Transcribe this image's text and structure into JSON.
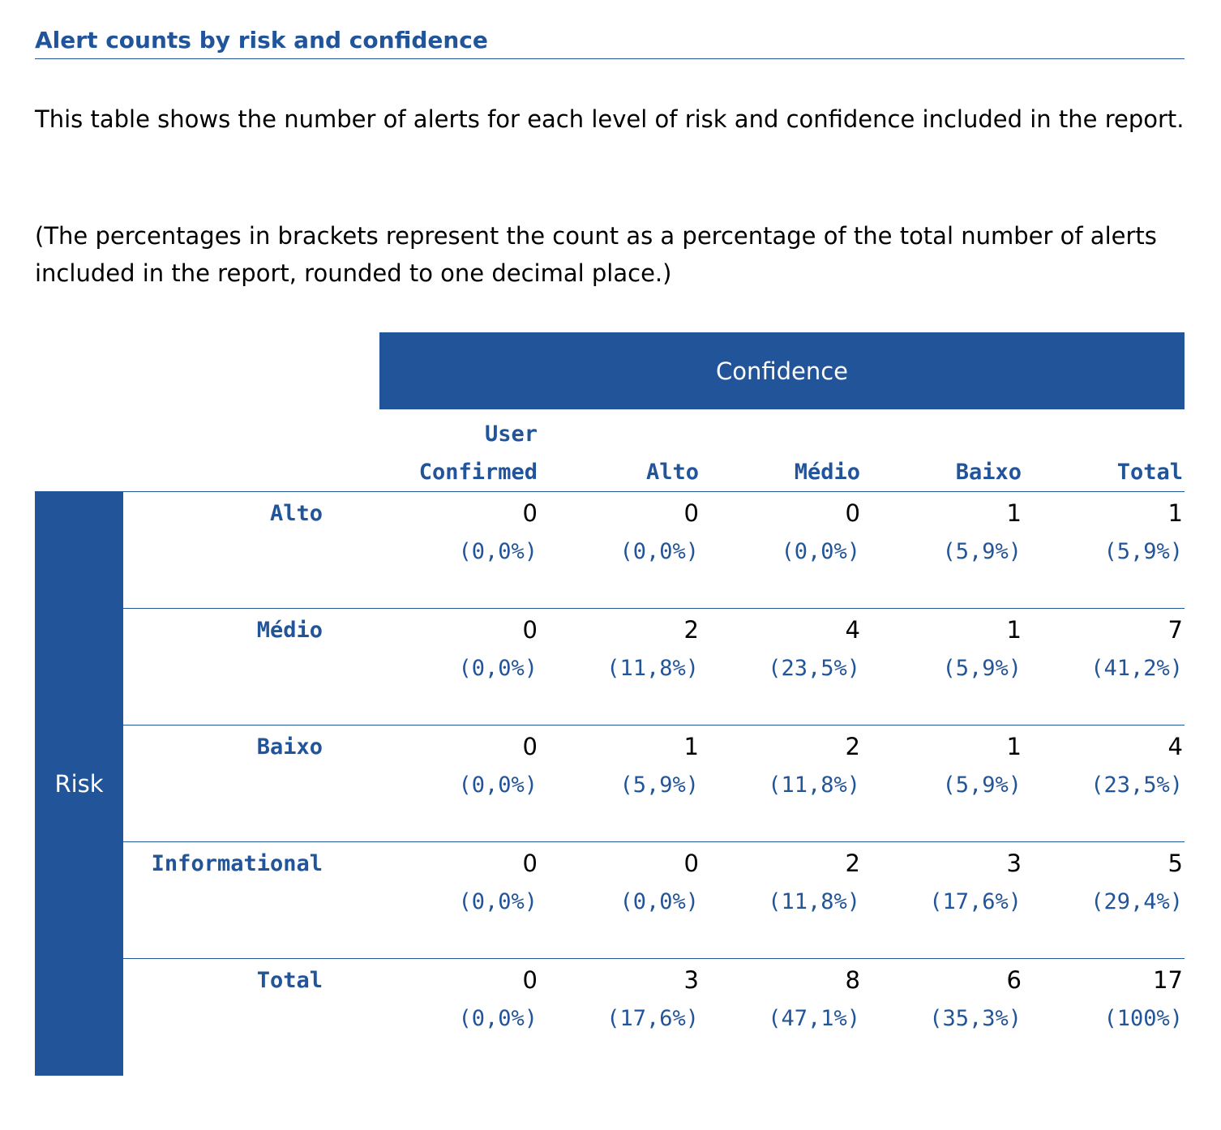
{
  "title": "Alert counts by risk and confidence",
  "paragraphs": [
    "This table shows the number of alerts for each level of risk and confidence included in the report.",
    "(The percentages in brackets represent the count as a percentage of the total number of alerts included in the report, rounded to one decimal place.)"
  ],
  "table": {
    "confidence_label": "Confidence",
    "risk_label": "Risk",
    "columns": [
      {
        "lines": [
          "User",
          "Confirmed"
        ]
      },
      {
        "lines": [
          "Alto"
        ]
      },
      {
        "lines": [
          "Médio"
        ]
      },
      {
        "lines": [
          "Baixo"
        ]
      },
      {
        "lines": [
          "Total"
        ]
      }
    ],
    "rows": [
      {
        "label": "Alto",
        "cells": [
          {
            "count": "0",
            "pct": "(0,0%)"
          },
          {
            "count": "0",
            "pct": "(0,0%)"
          },
          {
            "count": "0",
            "pct": "(0,0%)"
          },
          {
            "count": "1",
            "pct": "(5,9%)"
          },
          {
            "count": "1",
            "pct": "(5,9%)"
          }
        ]
      },
      {
        "label": "Médio",
        "cells": [
          {
            "count": "0",
            "pct": "(0,0%)"
          },
          {
            "count": "2",
            "pct": "(11,8%)"
          },
          {
            "count": "4",
            "pct": "(23,5%)"
          },
          {
            "count": "1",
            "pct": "(5,9%)"
          },
          {
            "count": "7",
            "pct": "(41,2%)"
          }
        ]
      },
      {
        "label": "Baixo",
        "cells": [
          {
            "count": "0",
            "pct": "(0,0%)"
          },
          {
            "count": "1",
            "pct": "(5,9%)"
          },
          {
            "count": "2",
            "pct": "(11,8%)"
          },
          {
            "count": "1",
            "pct": "(5,9%)"
          },
          {
            "count": "4",
            "pct": "(23,5%)"
          }
        ]
      },
      {
        "label": "Informational",
        "cells": [
          {
            "count": "0",
            "pct": "(0,0%)"
          },
          {
            "count": "0",
            "pct": "(0,0%)"
          },
          {
            "count": "2",
            "pct": "(11,8%)"
          },
          {
            "count": "3",
            "pct": "(17,6%)"
          },
          {
            "count": "5",
            "pct": "(29,4%)"
          }
        ]
      },
      {
        "label": "Total",
        "cells": [
          {
            "count": "0",
            "pct": "(0,0%)"
          },
          {
            "count": "3",
            "pct": "(17,6%)"
          },
          {
            "count": "8",
            "pct": "(47,1%)"
          },
          {
            "count": "6",
            "pct": "(35,3%)"
          },
          {
            "count": "17",
            "pct": "(100%)"
          }
        ]
      }
    ]
  },
  "colors": {
    "accent": "#22549a",
    "text": "#000000",
    "background": "#ffffff"
  }
}
